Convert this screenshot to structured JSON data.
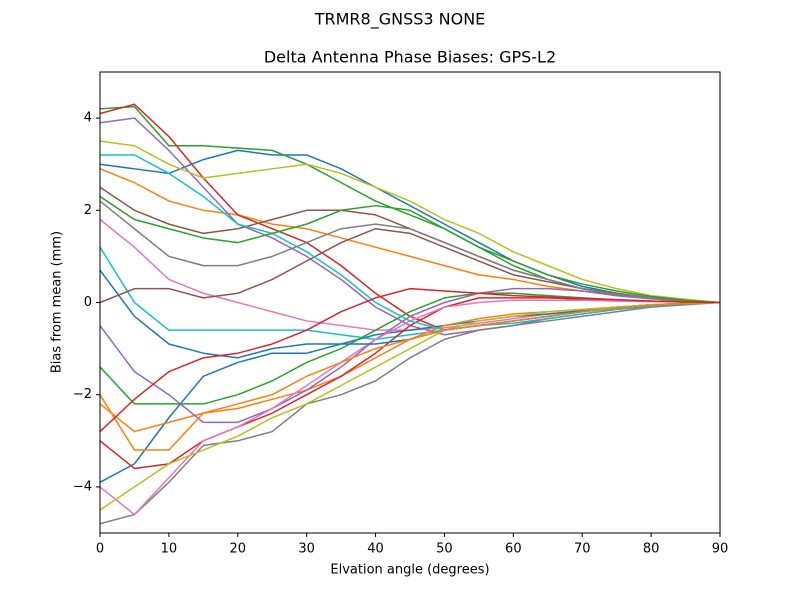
{
  "chart_data": {
    "type": "line",
    "suptitle": "TRMR8_GNSS3     NONE",
    "title": "Delta Antenna Phase Biases: GPS-L2",
    "xlabel": "Elvation angle (degrees)",
    "ylabel": "Bias from mean (mm)",
    "xlim": [
      0,
      90
    ],
    "xticks": [
      0,
      10,
      20,
      30,
      40,
      50,
      60,
      70,
      80,
      90
    ],
    "ylim": [
      -5,
      5
    ],
    "yticks": [
      {
        "value": -4,
        "label": "−4"
      },
      {
        "value": -2,
        "label": "−2"
      },
      0,
      2,
      4
    ],
    "grid": false,
    "x": [
      0,
      5,
      10,
      15,
      20,
      25,
      30,
      35,
      40,
      45,
      50,
      55,
      60,
      65,
      70,
      75,
      80,
      85,
      90
    ],
    "series": [
      {
        "color": "#1f77b4",
        "values": [
          3.0,
          2.9,
          2.8,
          3.1,
          3.3,
          3.2,
          3.2,
          2.9,
          2.5,
          2.1,
          1.7,
          1.3,
          0.9,
          0.6,
          0.35,
          0.2,
          0.1,
          0.05,
          0
        ]
      },
      {
        "color": "#ff7f0e",
        "values": [
          2.9,
          2.6,
          2.2,
          2.0,
          1.9,
          1.7,
          1.6,
          1.4,
          1.2,
          1.0,
          0.8,
          0.6,
          0.5,
          0.35,
          0.25,
          0.15,
          0.08,
          0.03,
          0
        ]
      },
      {
        "color": "#2ca02c",
        "values": [
          4.2,
          4.25,
          3.4,
          3.4,
          3.35,
          3.3,
          3.0,
          2.6,
          2.2,
          1.9,
          1.6,
          1.2,
          0.8,
          0.5,
          0.3,
          0.15,
          0.1,
          0.05,
          0
        ]
      },
      {
        "color": "#d62728",
        "values": [
          4.1,
          4.3,
          3.6,
          2.7,
          1.9,
          1.6,
          1.3,
          0.8,
          0.2,
          -0.3,
          -0.6,
          -0.5,
          -0.4,
          -0.3,
          -0.2,
          -0.1,
          -0.05,
          -0.02,
          0
        ]
      },
      {
        "color": "#9467bd",
        "values": [
          3.9,
          4.0,
          3.3,
          2.5,
          1.7,
          1.4,
          1.0,
          0.5,
          -0.1,
          -0.5,
          -0.7,
          -0.6,
          -0.5,
          -0.35,
          -0.25,
          -0.15,
          -0.08,
          -0.03,
          0
        ]
      },
      {
        "color": "#8c564b",
        "values": [
          2.5,
          2.0,
          1.7,
          1.5,
          1.6,
          1.8,
          2.0,
          2.0,
          1.9,
          1.6,
          1.3,
          1.0,
          0.7,
          0.5,
          0.3,
          0.18,
          0.1,
          0.04,
          0
        ]
      },
      {
        "color": "#e377c2",
        "values": [
          1.8,
          1.2,
          0.5,
          0.2,
          0.0,
          -0.2,
          -0.4,
          -0.5,
          -0.6,
          -0.6,
          -0.55,
          -0.45,
          -0.35,
          -0.25,
          -0.18,
          -0.1,
          -0.06,
          -0.02,
          0
        ]
      },
      {
        "color": "#7f7f7f",
        "values": [
          -4.8,
          -4.6,
          -3.9,
          -3.1,
          -3.0,
          -2.8,
          -2.2,
          -2.0,
          -1.7,
          -1.2,
          -0.8,
          -0.6,
          -0.5,
          -0.4,
          -0.3,
          -0.2,
          -0.1,
          -0.05,
          0
        ]
      },
      {
        "color": "#bcbd22",
        "values": [
          3.5,
          3.4,
          3.0,
          2.7,
          2.8,
          2.9,
          3.0,
          2.8,
          2.5,
          2.2,
          1.8,
          1.5,
          1.1,
          0.8,
          0.5,
          0.3,
          0.15,
          0.07,
          0
        ]
      },
      {
        "color": "#17becf",
        "values": [
          1.2,
          0.0,
          -0.6,
          -0.6,
          -0.6,
          -0.6,
          -0.6,
          -0.7,
          -0.8,
          -0.7,
          -0.6,
          -0.5,
          -0.4,
          -0.3,
          -0.2,
          -0.12,
          -0.06,
          -0.02,
          0
        ]
      },
      {
        "color": "#1f77b4",
        "values": [
          -3.9,
          -3.5,
          -2.5,
          -1.6,
          -1.3,
          -1.1,
          -1.1,
          -0.9,
          -0.7,
          -0.6,
          -0.5,
          -0.4,
          -0.3,
          -0.25,
          -0.18,
          -0.1,
          -0.06,
          -0.02,
          0
        ]
      },
      {
        "color": "#ff7f0e",
        "values": [
          -2.2,
          -2.8,
          -2.6,
          -2.4,
          -2.3,
          -2.1,
          -1.9,
          -1.6,
          -1.2,
          -0.8,
          -0.5,
          -0.35,
          -0.25,
          -0.2,
          -0.15,
          -0.1,
          -0.05,
          -0.02,
          0
        ]
      },
      {
        "color": "#2ca02c",
        "values": [
          -1.4,
          -2.2,
          -2.2,
          -2.2,
          -2.0,
          -1.7,
          -1.3,
          -1.0,
          -0.6,
          -0.2,
          0.1,
          0.2,
          0.2,
          0.15,
          0.1,
          0.06,
          0.03,
          0.01,
          0
        ]
      },
      {
        "color": "#d62728",
        "values": [
          -3.0,
          -3.6,
          -3.5,
          -3.0,
          -2.7,
          -2.4,
          -2.0,
          -1.6,
          -1.1,
          -0.5,
          -0.1,
          0.1,
          0.1,
          0.1,
          0.07,
          0.05,
          0.03,
          0.01,
          0
        ]
      },
      {
        "color": "#9467bd",
        "values": [
          -0.5,
          -1.5,
          -2.0,
          -2.6,
          -2.6,
          -2.3,
          -1.9,
          -1.4,
          -0.8,
          -0.3,
          0.0,
          0.2,
          0.3,
          0.3,
          0.25,
          0.15,
          0.08,
          0.03,
          0
        ]
      },
      {
        "color": "#8c564b",
        "values": [
          0.0,
          0.3,
          0.3,
          0.1,
          0.2,
          0.5,
          0.9,
          1.3,
          1.6,
          1.5,
          1.2,
          0.9,
          0.6,
          0.45,
          0.3,
          0.2,
          0.1,
          0.04,
          0
        ]
      },
      {
        "color": "#e377c2",
        "values": [
          -4.0,
          -4.6,
          -3.8,
          -3.0,
          -2.7,
          -2.3,
          -1.8,
          -1.3,
          -0.8,
          -0.4,
          -0.1,
          0.0,
          0.05,
          0.05,
          0.05,
          0.03,
          0.02,
          0.01,
          0
        ]
      },
      {
        "color": "#7f7f7f",
        "values": [
          2.2,
          1.6,
          1.0,
          0.8,
          0.8,
          1.0,
          1.3,
          1.6,
          1.7,
          1.6,
          1.3,
          1.0,
          0.7,
          0.5,
          0.3,
          0.18,
          0.1,
          0.04,
          0
        ]
      },
      {
        "color": "#bcbd22",
        "values": [
          -4.5,
          -4.0,
          -3.5,
          -3.2,
          -2.9,
          -2.5,
          -2.2,
          -1.8,
          -1.4,
          -1.0,
          -0.6,
          -0.4,
          -0.3,
          -0.2,
          -0.15,
          -0.1,
          -0.05,
          -0.02,
          0
        ]
      },
      {
        "color": "#17becf",
        "values": [
          3.2,
          3.2,
          2.8,
          2.3,
          1.7,
          1.5,
          1.1,
          0.6,
          0.0,
          -0.4,
          -0.6,
          -0.5,
          -0.45,
          -0.35,
          -0.25,
          -0.15,
          -0.08,
          -0.03,
          0
        ]
      },
      {
        "color": "#1f77b4",
        "values": [
          0.7,
          -0.3,
          -0.9,
          -1.1,
          -1.2,
          -1.0,
          -0.9,
          -0.9,
          -0.9,
          -0.8,
          -0.6,
          -0.5,
          -0.4,
          -0.3,
          -0.2,
          -0.12,
          -0.06,
          -0.02,
          0
        ]
      },
      {
        "color": "#ff7f0e",
        "values": [
          -2.0,
          -3.2,
          -3.2,
          -2.4,
          -2.2,
          -2.0,
          -1.6,
          -1.3,
          -1.0,
          -0.8,
          -0.6,
          -0.5,
          -0.4,
          -0.3,
          -0.2,
          -0.12,
          -0.06,
          -0.02,
          0
        ]
      },
      {
        "color": "#2ca02c",
        "values": [
          2.3,
          1.8,
          1.6,
          1.4,
          1.3,
          1.5,
          1.7,
          2.0,
          2.1,
          2.0,
          1.6,
          1.2,
          0.9,
          0.6,
          0.4,
          0.25,
          0.13,
          0.05,
          0
        ]
      },
      {
        "color": "#d62728",
        "values": [
          -2.8,
          -2.1,
          -1.5,
          -1.2,
          -1.1,
          -0.9,
          -0.6,
          -0.2,
          0.1,
          0.3,
          0.25,
          0.2,
          0.15,
          0.12,
          0.09,
          0.06,
          0.03,
          0.01,
          0
        ]
      }
    ]
  }
}
